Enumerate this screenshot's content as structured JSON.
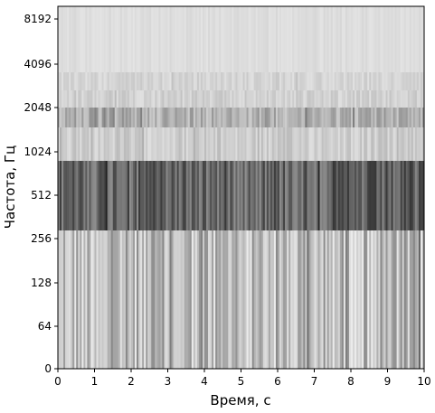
{
  "chart_data": {
    "type": "heatmap",
    "title": "",
    "xlabel": "Время, с",
    "ylabel": "Частота, Гц",
    "xlim": [
      0,
      10
    ],
    "x_ticks": [
      "0",
      "1",
      "2",
      "3",
      "4",
      "5",
      "6",
      "7",
      "8",
      "9",
      "10"
    ],
    "y_scale": "log2 (frequency bands)",
    "y_ticks": [
      "0",
      "64",
      "128",
      "256",
      "512",
      "1024",
      "2048",
      "4096",
      "8192"
    ],
    "colormap": "grayscale",
    "grid": false,
    "bands": [
      {
        "name": "0-256 Hz",
        "from": "0",
        "to": "256",
        "mean_gray": 190,
        "variation": 55
      },
      {
        "name": "256-~900 Hz",
        "from": "256",
        "to": "~900",
        "mean_gray": 100,
        "variation": 45
      },
      {
        "name": "~900-~1500 Hz",
        "from": "~900",
        "to": "~1500",
        "mean_gray": 205,
        "variation": 18
      },
      {
        "name": "~1500-~2300 Hz",
        "from": "~1500",
        "to": "~2300",
        "mean_gray": 175,
        "variation": 30
      },
      {
        "name": "~2300-~3000 Hz",
        "from": "~2300",
        "to": "~3000",
        "mean_gray": 210,
        "variation": 14
      },
      {
        "name": "~3000-~4300 Hz",
        "from": "~3000",
        "to": "~4300",
        "mean_gray": 213,
        "variation": 12
      },
      {
        "name": "~4300-~9000 Hz",
        "from": "~4300",
        "to": "~9000",
        "mean_gray": 221,
        "variation": 6
      }
    ]
  }
}
